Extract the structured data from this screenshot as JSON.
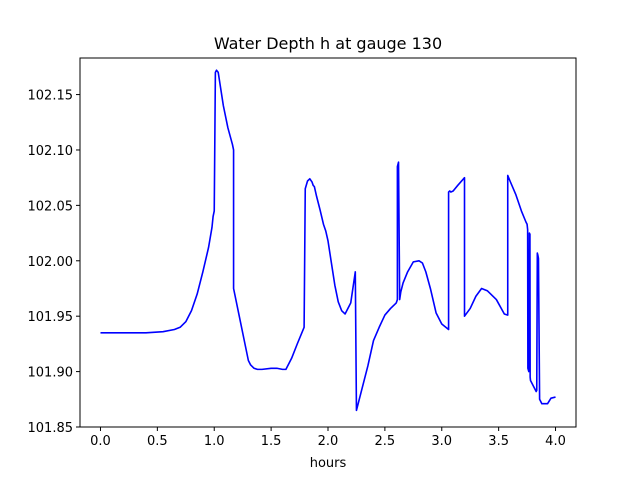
{
  "chart_data": {
    "type": "line",
    "title": "Water Depth h at gauge 130",
    "xlabel": "hours",
    "ylabel": "",
    "xlim": [
      -0.18,
      4.18
    ],
    "ylim": [
      101.85,
      102.183
    ],
    "xticks": [
      0.0,
      0.5,
      1.0,
      1.5,
      2.0,
      2.5,
      3.0,
      3.5,
      4.0
    ],
    "xtick_labels": [
      "0.0",
      "0.5",
      "1.0",
      "1.5",
      "2.0",
      "2.5",
      "3.0",
      "3.5",
      "4.0"
    ],
    "yticks": [
      101.85,
      101.9,
      101.95,
      102.0,
      102.05,
      102.1,
      102.15
    ],
    "ytick_labels": [
      "101.85",
      "101.90",
      "101.95",
      "102.00",
      "102.05",
      "102.10",
      "102.15"
    ],
    "grid": false,
    "series": [
      {
        "color": "#0000ff",
        "x": [
          0.0,
          0.2,
          0.4,
          0.55,
          0.65,
          0.7,
          0.75,
          0.8,
          0.85,
          0.9,
          0.95,
          0.98,
          0.99,
          1.0,
          1.01,
          1.02,
          1.035,
          1.05,
          1.08,
          1.12,
          1.16,
          1.17,
          1.17,
          1.22,
          1.27,
          1.3,
          1.32,
          1.35,
          1.38,
          1.42,
          1.5,
          1.55,
          1.6,
          1.63,
          1.68,
          1.73,
          1.79,
          1.79,
          1.8,
          1.82,
          1.84,
          1.86,
          1.87,
          1.88,
          1.9,
          1.92,
          1.93,
          1.96,
          1.98,
          2.0,
          2.03,
          2.06,
          2.09,
          2.12,
          2.15,
          2.2,
          2.24,
          2.24,
          2.25,
          2.3,
          2.35,
          2.4,
          2.45,
          2.5,
          2.55,
          2.6,
          2.61,
          2.61,
          2.615,
          2.62,
          2.63,
          2.63,
          2.64,
          2.66,
          2.7,
          2.75,
          2.8,
          2.83,
          2.86,
          2.9,
          2.95,
          3.0,
          3.06,
          3.06,
          3.07,
          3.08,
          3.1,
          3.14,
          3.2,
          3.2,
          3.2,
          3.25,
          3.3,
          3.35,
          3.4,
          3.48,
          3.55,
          3.58,
          3.58,
          3.6,
          3.65,
          3.7,
          3.74,
          3.75,
          3.755,
          3.757,
          3.765,
          3.77,
          3.775,
          3.777,
          3.78,
          3.83,
          3.835,
          3.84,
          3.845,
          3.85,
          3.86,
          3.88,
          3.93,
          3.96,
          4.0
        ],
        "y": [
          101.935,
          101.935,
          101.935,
          101.936,
          101.938,
          101.94,
          101.945,
          101.955,
          101.97,
          101.99,
          102.012,
          102.03,
          102.04,
          102.045,
          102.17,
          102.172,
          102.17,
          102.16,
          102.14,
          102.12,
          102.105,
          102.1,
          101.975,
          101.95,
          101.925,
          101.91,
          101.906,
          101.903,
          101.902,
          101.902,
          101.903,
          101.903,
          101.902,
          101.902,
          101.912,
          101.925,
          101.94,
          101.94,
          102.065,
          102.072,
          102.074,
          102.071,
          102.068,
          102.067,
          102.058,
          102.05,
          102.046,
          102.033,
          102.027,
          102.018,
          101.998,
          101.978,
          101.963,
          101.955,
          101.952,
          101.962,
          101.99,
          101.99,
          101.865,
          101.885,
          101.905,
          101.928,
          101.94,
          101.951,
          101.957,
          101.962,
          101.965,
          102.085,
          102.087,
          102.089,
          101.965,
          101.965,
          101.972,
          101.98,
          101.99,
          101.999,
          102.0,
          101.998,
          101.99,
          101.975,
          101.953,
          101.943,
          101.938,
          102.062,
          102.063,
          102.062,
          102.063,
          102.068,
          102.075,
          102.075,
          101.95,
          101.957,
          101.968,
          101.975,
          101.973,
          101.965,
          101.952,
          101.951,
          102.077,
          102.072,
          102.06,
          102.045,
          102.035,
          102.033,
          102.028,
          101.903,
          101.9,
          102.025,
          102.024,
          101.895,
          101.892,
          101.882,
          101.883,
          102.007,
          102.005,
          102.002,
          101.875,
          101.871,
          101.871,
          101.876,
          101.877
        ]
      }
    ]
  }
}
